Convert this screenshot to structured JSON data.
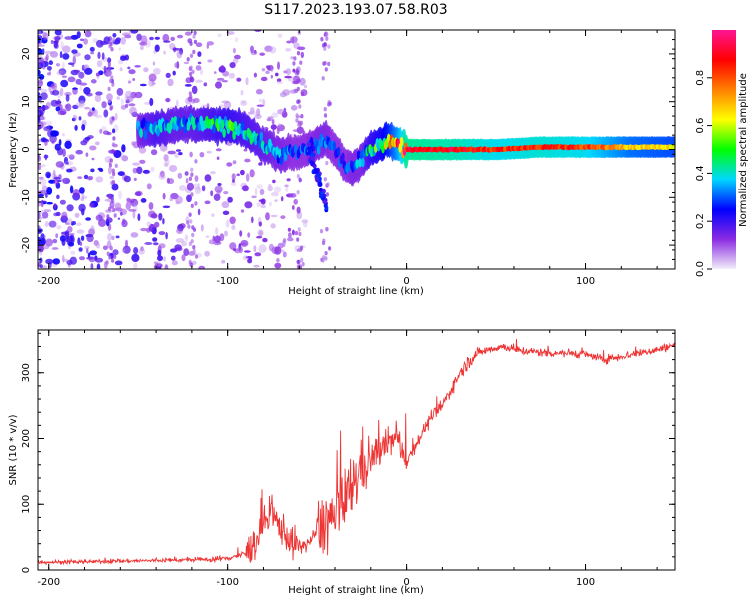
{
  "title": "S117.2023.193.07.58.R03",
  "chart_data": [
    {
      "type": "heatmap",
      "name": "spectrogram",
      "xlabel": "Height of straight line (km)",
      "ylabel": "Frequency (Hz)",
      "xlim": [
        -206,
        150
      ],
      "ylim": [
        -25,
        25
      ],
      "xticks": [
        -200,
        -100,
        0,
        100
      ],
      "yticks": [
        -20,
        -10,
        0,
        10,
        20
      ],
      "colorbar": {
        "label": "Normalized spectral amplitude",
        "range": [
          0.0,
          1.0
        ],
        "ticks": [
          0.0,
          0.2,
          0.4,
          0.6,
          0.8
        ],
        "colors": [
          "#f2eefa",
          "#8a2be2",
          "#0000ff",
          "#00d8ff",
          "#00ff00",
          "#ffff00",
          "#ff8000",
          "#ff0000",
          "#ff1493"
        ]
      },
      "ridge": {
        "x": [
          -150,
          -140,
          -130,
          -120,
          -110,
          -100,
          -90,
          -80,
          -70,
          -60,
          -50,
          -45,
          -40,
          -35,
          -30,
          -25,
          -20,
          -15,
          -10,
          -5,
          0,
          25,
          50,
          75,
          100,
          125,
          150
        ],
        "f": [
          4,
          4.5,
          5,
          5.5,
          5,
          5,
          4,
          1,
          -1,
          -0.5,
          1,
          2,
          0,
          -3,
          -4,
          -2,
          0,
          1,
          2,
          1,
          0,
          0,
          0,
          0.5,
          0.5,
          0.5,
          0.5
        ],
        "amp": [
          0.3,
          0.4,
          0.35,
          0.35,
          0.4,
          0.45,
          0.4,
          0.35,
          0.3,
          0.25,
          0.3,
          0.3,
          0.25,
          0.25,
          0.3,
          0.3,
          0.45,
          0.5,
          0.6,
          0.75,
          0.95,
          0.92,
          0.85,
          0.88,
          0.85,
          0.7,
          0.65
        ]
      }
    },
    {
      "type": "line",
      "name": "snr",
      "xlabel": "Height of straight line (km)",
      "ylabel": "SNR (10 * v/v)",
      "xlim": [
        -206,
        150
      ],
      "ylim": [
        0,
        365
      ],
      "xticks": [
        -200,
        -100,
        0,
        100
      ],
      "yticks": [
        0,
        100,
        200,
        300
      ],
      "color": "#ee3333",
      "series": [
        {
          "name": "SNR",
          "x": [
            -206,
            -190,
            -170,
            -150,
            -130,
            -110,
            -100,
            -90,
            -85,
            -80,
            -75,
            -70,
            -65,
            -60,
            -55,
            -50,
            -45,
            -40,
            -35,
            -30,
            -25,
            -20,
            -15,
            -10,
            -5,
            0,
            5,
            10,
            15,
            20,
            25,
            30,
            35,
            40,
            45,
            50,
            55,
            60,
            70,
            80,
            90,
            100,
            110,
            120,
            130,
            140,
            150
          ],
          "values": [
            12,
            12,
            13,
            14,
            15,
            16,
            18,
            25,
            40,
            70,
            80,
            65,
            45,
            35,
            40,
            60,
            75,
            80,
            95,
            130,
            160,
            170,
            180,
            195,
            200,
            165,
            190,
            215,
            235,
            250,
            275,
            300,
            318,
            330,
            335,
            338,
            340,
            335,
            332,
            330,
            330,
            328,
            320,
            325,
            330,
            335,
            342
          ]
        }
      ]
    }
  ]
}
